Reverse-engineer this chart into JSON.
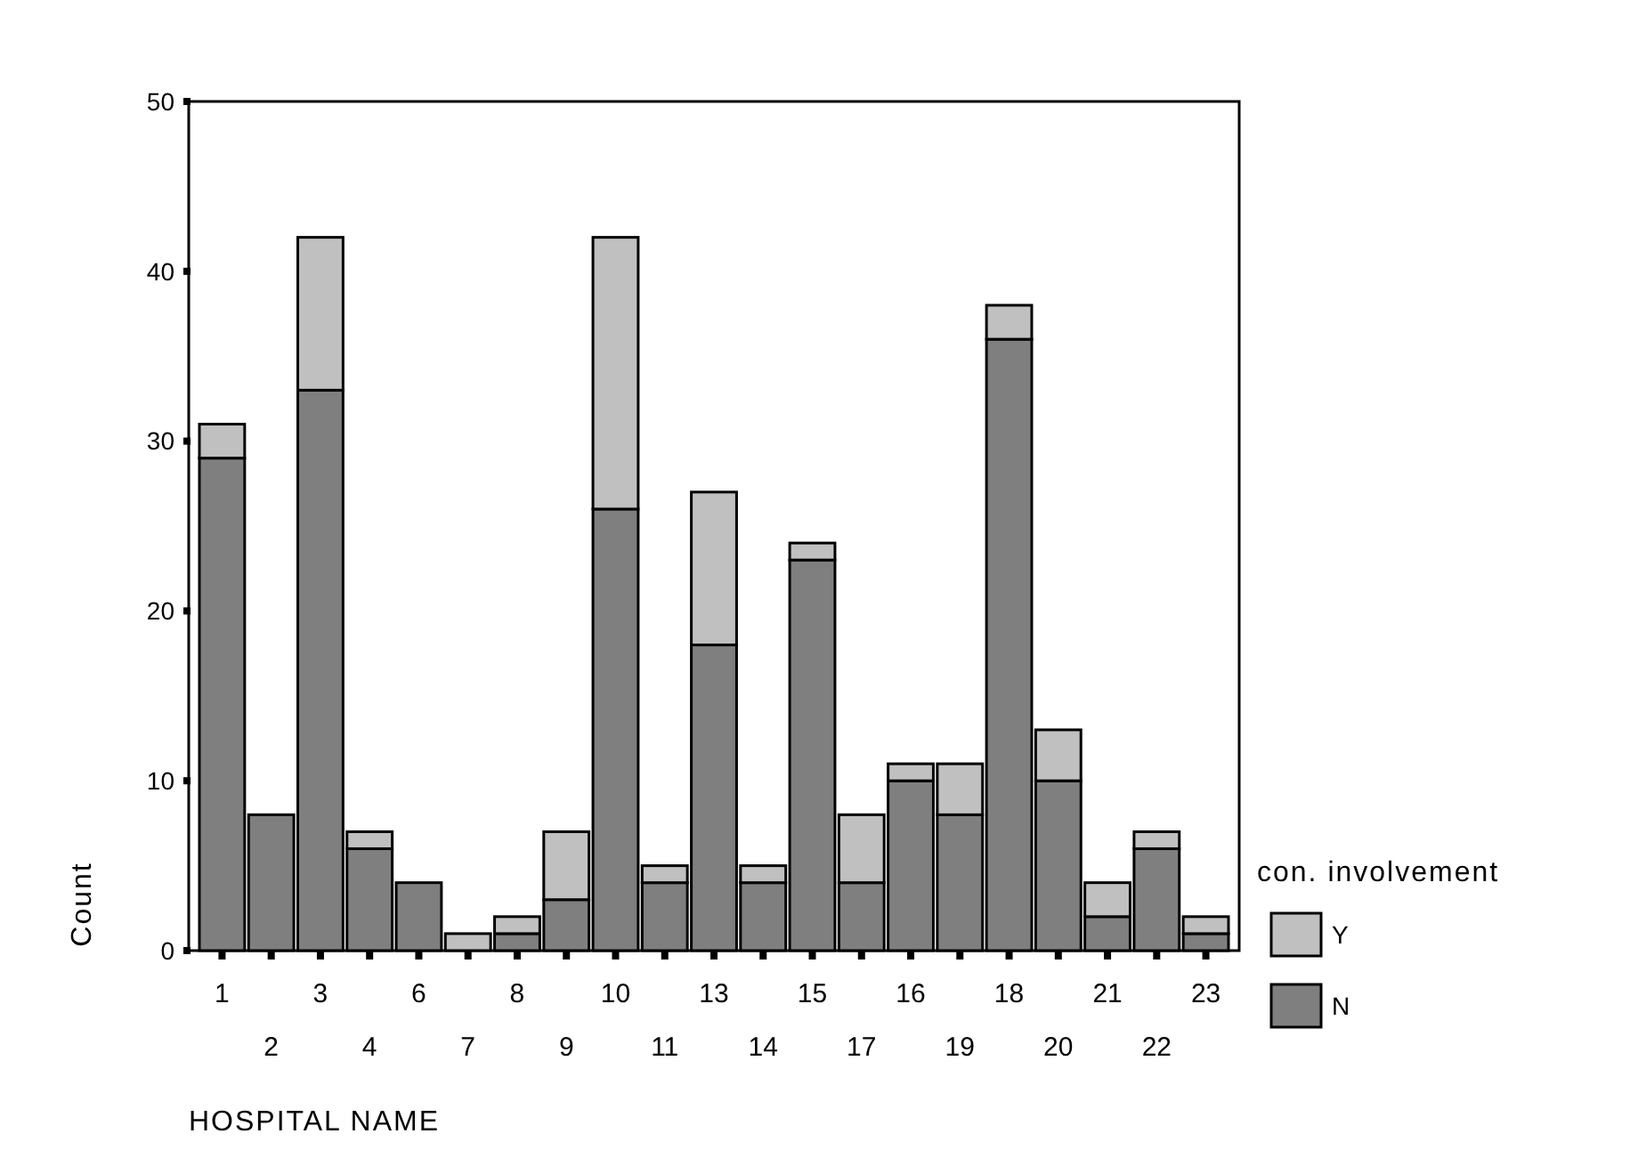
{
  "chart_data": {
    "type": "bar",
    "stacked": true,
    "xlabel": "HOSPITAL NAME",
    "ylabel": "Count",
    "legend_title": "con. involvement",
    "legend": "right",
    "categories": [
      "1",
      "2",
      "3",
      "4",
      "6",
      "7",
      "8",
      "9",
      "10",
      "11",
      "13",
      "14",
      "15",
      "17",
      "16",
      "19",
      "18",
      "20",
      "21",
      "22",
      "23"
    ],
    "ylim": [
      0,
      50
    ],
    "yticks": [
      0,
      10,
      20,
      30,
      40,
      50
    ],
    "series": [
      {
        "name": "N",
        "color": "#7f7f7f",
        "values": [
          29,
          8,
          33,
          6,
          4,
          0,
          1,
          3,
          26,
          4,
          18,
          4,
          23,
          4,
          10,
          8,
          36,
          10,
          2,
          6,
          1
        ]
      },
      {
        "name": "Y",
        "color": "#c0c0c0",
        "values": [
          2,
          0,
          9,
          1,
          0,
          1,
          1,
          4,
          16,
          1,
          9,
          1,
          1,
          4,
          1,
          3,
          2,
          3,
          2,
          1,
          1
        ]
      }
    ]
  }
}
